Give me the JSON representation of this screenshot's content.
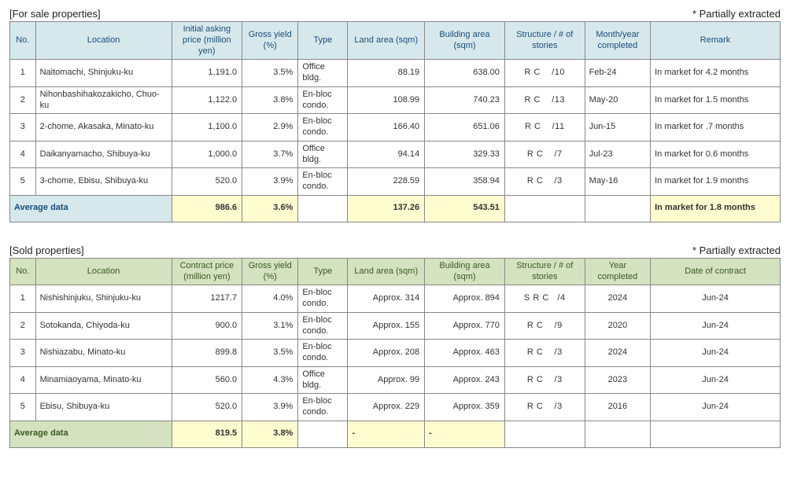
{
  "colors": {
    "blue_header_bg": "#d7e8ec",
    "blue_header_fg": "#1a4e7a",
    "green_header_bg": "#d4e2bf",
    "green_header_fg": "#3b5a23",
    "highlight_bg": "#fffccf",
    "border": "#888888"
  },
  "typography": {
    "fontsize_body": 11,
    "fontsize_header": 13
  },
  "for_sale": {
    "title": "[For sale properties]",
    "note": "* Partially extracted",
    "columns": {
      "no": "No.",
      "location": "Location",
      "price": "Initial asking price (million yen)",
      "yield": "Gross yield (%)",
      "type": "Type",
      "land": "Land area (sqm)",
      "building": "Building area (sqm)",
      "structure": "Structure / # of stories",
      "completed": "Month/year completed",
      "remark": "Remark"
    },
    "rows": [
      {
        "no": "1",
        "location": "Naitomachi, Shinjuku-ku",
        "price": "1,191.0",
        "yield": "3.5%",
        "type": "Office bldg.",
        "land": "88.19",
        "building": "638.00",
        "structure": "R C    /10",
        "completed": "Feb-24",
        "remark": "In market for 4.2 months"
      },
      {
        "no": "2",
        "location": "Nihonbashihakozakicho, Chuo-ku",
        "price": "1,122.0",
        "yield": "3.8%",
        "type": "En-bloc condo.",
        "land": "108.99",
        "building": "740.23",
        "structure": "R C    /13",
        "completed": "May-20",
        "remark": "In market for 1.5 months"
      },
      {
        "no": "3",
        "location": "2-chome, Akasaka, Minato-ku",
        "price": "1,100.0",
        "yield": "2.9%",
        "type": "En-bloc condo.",
        "land": "166.40",
        "building": "651.06",
        "structure": "R C    /11",
        "completed": "Jun-15",
        "remark": "In market for .7 months"
      },
      {
        "no": "4",
        "location": "Daikanyamacho, Shibuya-ku",
        "price": "1,000.0",
        "yield": "3.7%",
        "type": "Office bldg.",
        "land": "94.14",
        "building": "329.33",
        "structure": "R C    /7",
        "completed": "Jul-23",
        "remark": "In market for 0.6 months"
      },
      {
        "no": "5",
        "location": "3-chome, Ebisu, Shibuya-ku",
        "price": "520.0",
        "yield": "3.9%",
        "type": "En-bloc condo.",
        "land": "228.59",
        "building": "358.94",
        "structure": "R C    /3",
        "completed": "May-16",
        "remark": "In market for 1.9 months"
      }
    ],
    "average": {
      "label": "Average data",
      "price": "986.6",
      "yield": "3.6%",
      "type": "",
      "land": "137.26",
      "building": "543.51",
      "structure": "",
      "completed": "",
      "remark": "In market for 1.8 months"
    }
  },
  "sold": {
    "title": "[Sold properties]",
    "note": "* Partially extracted",
    "columns": {
      "no": "No.",
      "location": "Location",
      "price": "Contract price (million yen)",
      "yield": "Gross yield (%)",
      "type": "Type",
      "land": "Land area (sqm)",
      "building": "Building area (sqm)",
      "structure": "Structure / # of stories",
      "completed": "Year completed",
      "remark": "Date of contract"
    },
    "rows": [
      {
        "no": "1",
        "location": "Nishishinjuku, Shinjuku-ku",
        "price": "1217.7",
        "yield": "4.0%",
        "type": "En-bloc condo.",
        "land": "Approx. 314",
        "building": "Approx. 894",
        "structure": "S R C   /4",
        "completed": "2024",
        "remark": "Jun-24"
      },
      {
        "no": "2",
        "location": "Sotokanda, Chiyoda-ku",
        "price": "900.0",
        "yield": "3.1%",
        "type": "En-bloc condo.",
        "land": "Approx. 155",
        "building": "Approx. 770",
        "structure": "R C    /9",
        "completed": "2020",
        "remark": "Jun-24"
      },
      {
        "no": "3",
        "location": "Nishiazabu, Minato-ku",
        "price": "899.8",
        "yield": "3.5%",
        "type": "En-bloc condo.",
        "land": "Approx. 208",
        "building": "Approx. 463",
        "structure": "R C    /3",
        "completed": "2024",
        "remark": "Jun-24"
      },
      {
        "no": "4",
        "location": "Minamiaoyama, Minato-ku",
        "price": "560.0",
        "yield": "4.3%",
        "type": "Office bldg.",
        "land": "Approx. 99",
        "building": "Approx. 243",
        "structure": "R C    /3",
        "completed": "2023",
        "remark": "Jun-24"
      },
      {
        "no": "5",
        "location": "Ebisu, Shibuya-ku",
        "price": "520.0",
        "yield": "3.9%",
        "type": "En-bloc condo.",
        "land": "Approx. 229",
        "building": "Approx. 359",
        "structure": "R C    /3",
        "completed": "2016",
        "remark": "Jun-24"
      }
    ],
    "average": {
      "label": "Average data",
      "price": "819.5",
      "yield": "3.8%",
      "type": "",
      "land": "-",
      "building": "-",
      "structure": "",
      "completed": "",
      "remark": ""
    }
  }
}
